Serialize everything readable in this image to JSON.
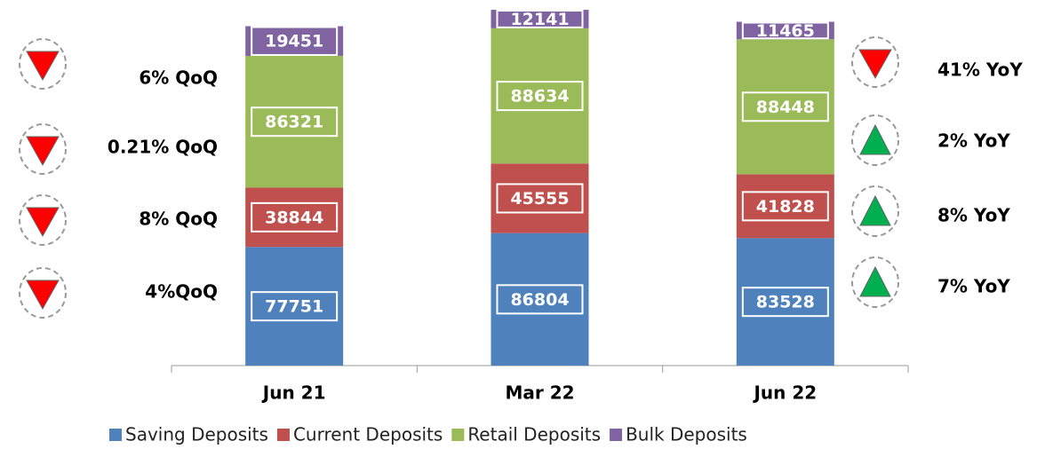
{
  "chart_data": {
    "type": "stacked_bar",
    "categories": [
      "Jun 21",
      "Mar 22",
      "Jun 22"
    ],
    "series": [
      {
        "name": "Saving Deposits",
        "color": "#4f81bd",
        "values": [
          77751,
          86804,
          83528
        ]
      },
      {
        "name": "Current Deposits",
        "color": "#c0504d",
        "values": [
          38844,
          45555,
          41828
        ]
      },
      {
        "name": "Retail Deposits",
        "color": "#9bbb59",
        "values": [
          86321,
          88634,
          88448
        ]
      },
      {
        "name": "Bulk Deposits",
        "color": "#8064a2",
        "values": [
          19451,
          12141,
          11465
        ]
      }
    ],
    "legend": "bottom",
    "qoq_annotations": [
      {
        "text": "6% QoQ",
        "direction": "down",
        "color": "#ff0000"
      },
      {
        "text": "0.21% QoQ",
        "direction": "down",
        "color": "#ff0000"
      },
      {
        "text": "8% QoQ",
        "direction": "down",
        "color": "#ff0000"
      },
      {
        "text": "4%QoQ",
        "direction": "down",
        "color": "#ff0000"
      }
    ],
    "yoy_annotations": [
      {
        "text": "41% YoY",
        "direction": "down",
        "color": "#ff0000"
      },
      {
        "text": "2% YoY",
        "direction": "up",
        "color": "#00b050"
      },
      {
        "text": "8% YoY",
        "direction": "up",
        "color": "#00b050"
      },
      {
        "text": "7% YoY",
        "direction": "up",
        "color": "#00b050"
      }
    ]
  }
}
